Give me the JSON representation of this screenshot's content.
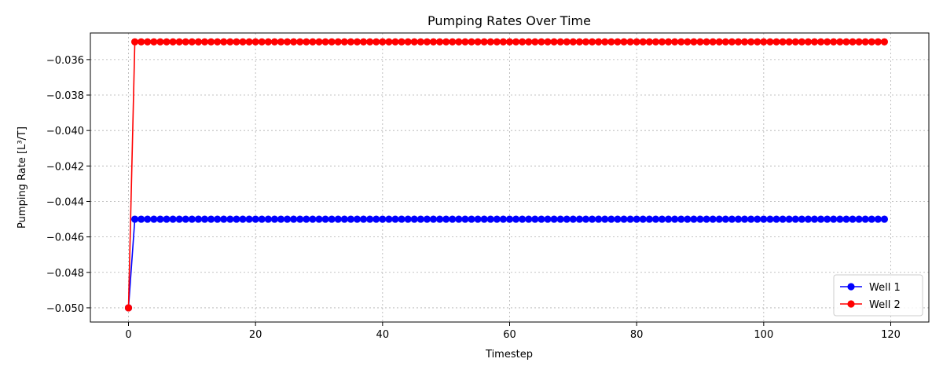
{
  "chart_data": {
    "type": "line",
    "title": "Pumping Rates Over Time",
    "xlabel": "Timestep",
    "ylabel": "Pumping Rate [L³/T]",
    "xlim": [
      -6,
      126
    ],
    "ylim": [
      -0.0508,
      -0.0345
    ],
    "xticks": [
      0,
      20,
      40,
      60,
      80,
      100,
      120
    ],
    "yticks": [
      -0.036,
      -0.038,
      -0.04,
      -0.042,
      -0.044,
      -0.046,
      -0.048,
      -0.05
    ],
    "ytick_labels": [
      "−0.036",
      "−0.038",
      "−0.040",
      "−0.042",
      "−0.044",
      "−0.046",
      "−0.048",
      "−0.050"
    ],
    "grid": true,
    "legend_position": "lower-right",
    "x_start": 0,
    "x_end": 119,
    "series": [
      {
        "name": "Well 1",
        "color": "#0000ff",
        "marker": "circle",
        "initial_value": -0.05,
        "value": -0.045
      },
      {
        "name": "Well 2",
        "color": "#ff0000",
        "marker": "circle",
        "initial_value": -0.05,
        "value": -0.035
      }
    ]
  }
}
